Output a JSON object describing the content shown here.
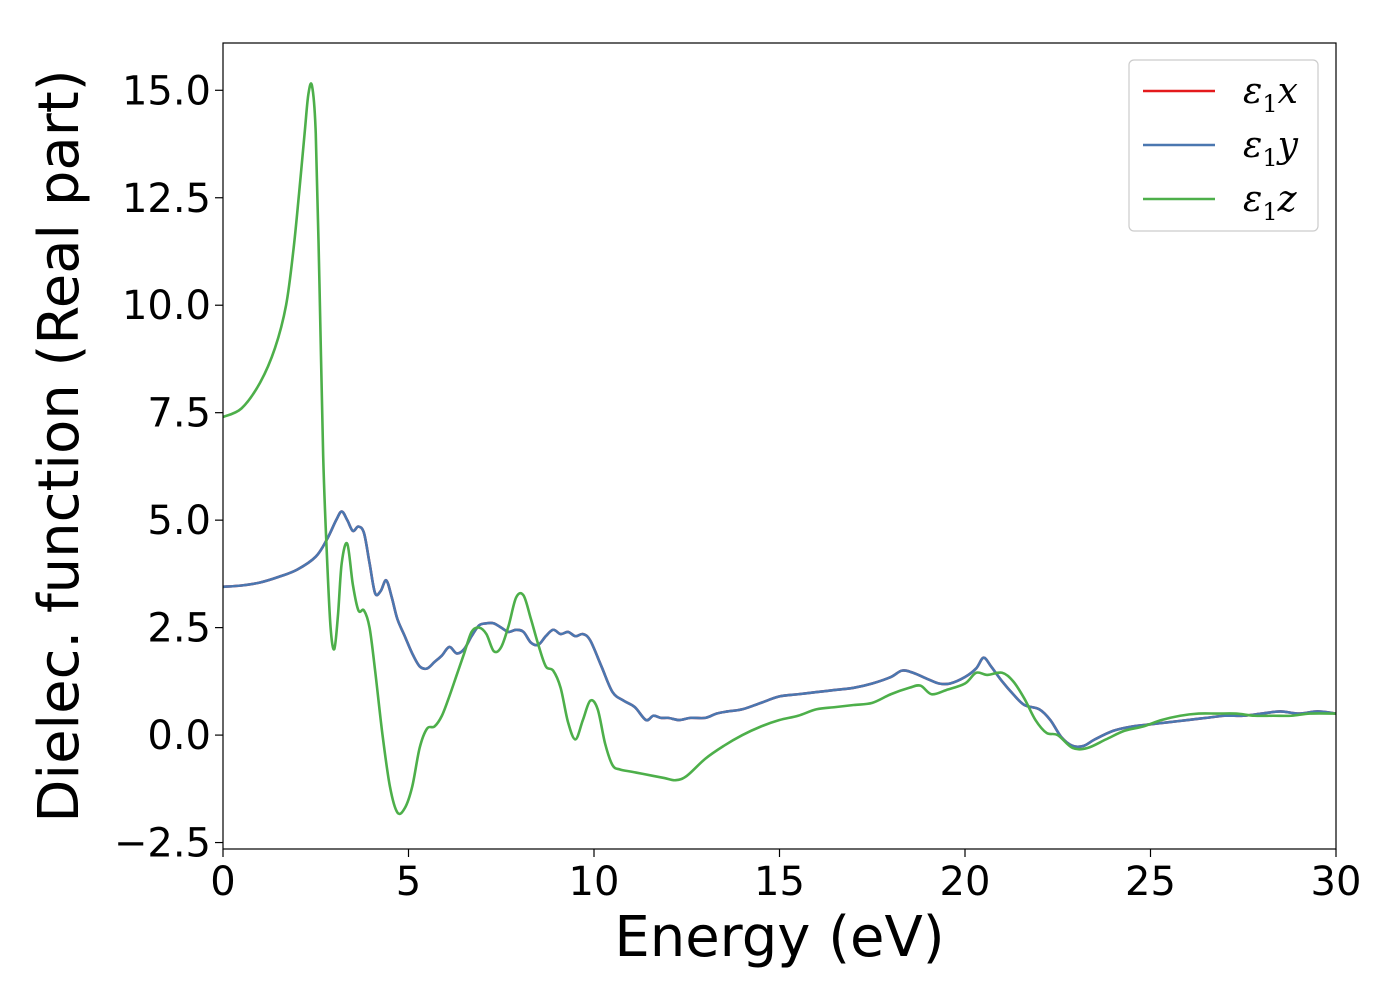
{
  "chart_data": {
    "type": "line",
    "xlabel": "Energy (eV)",
    "ylabel": "Dielec. function (Real part)",
    "xlim": [
      0,
      30
    ],
    "ylim": [
      -2.65,
      16.1
    ],
    "xticks": [
      "0",
      "5",
      "10",
      "15",
      "20",
      "25",
      "30"
    ],
    "yticks": [
      "−2.5",
      "0.0",
      "2.5",
      "5.0",
      "7.5",
      "10.0",
      "12.5",
      "15.0"
    ],
    "grid": false,
    "legend_position": "top-right",
    "series": [
      {
        "name": "ε1x",
        "symbol": "ε",
        "sub": "1",
        "axis": "x",
        "color": "#e41a1c",
        "x": [
          0,
          0.5,
          1,
          1.5,
          2,
          2.5,
          2.8,
          3.05,
          3.2,
          3.35,
          3.5,
          3.65,
          3.8,
          3.95,
          4.1,
          4.25,
          4.4,
          4.55,
          4.7,
          4.9,
          5.1,
          5.3,
          5.5,
          5.7,
          5.9,
          6.1,
          6.3,
          6.5,
          6.7,
          6.9,
          7.1,
          7.3,
          7.5,
          7.7,
          7.9,
          8.1,
          8.3,
          8.5,
          8.7,
          8.9,
          9.1,
          9.3,
          9.5,
          9.7,
          9.9,
          10.2,
          10.5,
          10.8,
          11.1,
          11.4,
          11.6,
          11.8,
          12,
          12.3,
          12.6,
          13,
          13.3,
          13.6,
          14,
          14.5,
          15,
          15.5,
          16,
          16.5,
          17,
          17.5,
          18,
          18.3,
          18.6,
          19,
          19.3,
          19.6,
          20,
          20.3,
          20.5,
          20.7,
          21,
          21.3,
          21.6,
          22,
          22.3,
          22.6,
          22.9,
          23.2,
          23.5,
          24,
          24.5,
          25,
          25.5,
          26,
          26.5,
          27,
          27.5,
          28,
          28.5,
          29,
          29.5,
          30
        ],
        "y": [
          3.45,
          3.48,
          3.55,
          3.68,
          3.85,
          4.15,
          4.55,
          5.0,
          5.2,
          5.0,
          4.75,
          4.85,
          4.7,
          4.0,
          3.3,
          3.35,
          3.6,
          3.2,
          2.7,
          2.3,
          1.9,
          1.6,
          1.55,
          1.7,
          1.85,
          2.05,
          1.9,
          2.0,
          2.3,
          2.55,
          2.6,
          2.6,
          2.5,
          2.4,
          2.45,
          2.4,
          2.15,
          2.1,
          2.3,
          2.45,
          2.35,
          2.4,
          2.3,
          2.35,
          2.2,
          1.6,
          1.0,
          0.8,
          0.65,
          0.35,
          0.45,
          0.4,
          0.4,
          0.35,
          0.4,
          0.4,
          0.5,
          0.55,
          0.6,
          0.75,
          0.9,
          0.95,
          1.0,
          1.05,
          1.1,
          1.2,
          1.35,
          1.5,
          1.45,
          1.3,
          1.2,
          1.2,
          1.35,
          1.55,
          1.8,
          1.6,
          1.25,
          0.95,
          0.7,
          0.6,
          0.35,
          -0.05,
          -0.25,
          -0.25,
          -0.1,
          0.1,
          0.2,
          0.25,
          0.3,
          0.35,
          0.4,
          0.45,
          0.45,
          0.5,
          0.55,
          0.5,
          0.55,
          0.5
        ]
      },
      {
        "name": "ε1y",
        "symbol": "ε",
        "sub": "1",
        "axis": "y",
        "color": "#4a77b0",
        "x": [
          0,
          0.5,
          1,
          1.5,
          2,
          2.5,
          2.8,
          3.05,
          3.2,
          3.35,
          3.5,
          3.65,
          3.8,
          3.95,
          4.1,
          4.25,
          4.4,
          4.55,
          4.7,
          4.9,
          5.1,
          5.3,
          5.5,
          5.7,
          5.9,
          6.1,
          6.3,
          6.5,
          6.7,
          6.9,
          7.1,
          7.3,
          7.5,
          7.7,
          7.9,
          8.1,
          8.3,
          8.5,
          8.7,
          8.9,
          9.1,
          9.3,
          9.5,
          9.7,
          9.9,
          10.2,
          10.5,
          10.8,
          11.1,
          11.4,
          11.6,
          11.8,
          12,
          12.3,
          12.6,
          13,
          13.3,
          13.6,
          14,
          14.5,
          15,
          15.5,
          16,
          16.5,
          17,
          17.5,
          18,
          18.3,
          18.6,
          19,
          19.3,
          19.6,
          20,
          20.3,
          20.5,
          20.7,
          21,
          21.3,
          21.6,
          22,
          22.3,
          22.6,
          22.9,
          23.2,
          23.5,
          24,
          24.5,
          25,
          25.5,
          26,
          26.5,
          27,
          27.5,
          28,
          28.5,
          29,
          29.5,
          30
        ],
        "y": [
          3.45,
          3.48,
          3.55,
          3.68,
          3.85,
          4.15,
          4.55,
          5.0,
          5.2,
          5.0,
          4.75,
          4.85,
          4.7,
          4.0,
          3.3,
          3.35,
          3.6,
          3.2,
          2.7,
          2.3,
          1.9,
          1.6,
          1.55,
          1.7,
          1.85,
          2.05,
          1.9,
          2.0,
          2.3,
          2.55,
          2.6,
          2.6,
          2.5,
          2.4,
          2.45,
          2.4,
          2.15,
          2.1,
          2.3,
          2.45,
          2.35,
          2.4,
          2.3,
          2.35,
          2.2,
          1.6,
          1.0,
          0.8,
          0.65,
          0.35,
          0.45,
          0.4,
          0.4,
          0.35,
          0.4,
          0.4,
          0.5,
          0.55,
          0.6,
          0.75,
          0.9,
          0.95,
          1.0,
          1.05,
          1.1,
          1.2,
          1.35,
          1.5,
          1.45,
          1.3,
          1.2,
          1.2,
          1.35,
          1.55,
          1.8,
          1.6,
          1.25,
          0.95,
          0.7,
          0.6,
          0.35,
          -0.05,
          -0.25,
          -0.25,
          -0.1,
          0.1,
          0.2,
          0.25,
          0.3,
          0.35,
          0.4,
          0.45,
          0.45,
          0.5,
          0.55,
          0.5,
          0.55,
          0.5
        ]
      },
      {
        "name": "ε1z",
        "symbol": "ε",
        "sub": "1",
        "axis": "z",
        "color": "#4daf4a",
        "x": [
          0,
          0.5,
          1,
          1.4,
          1.7,
          1.9,
          2.05,
          2.2,
          2.3,
          2.4,
          2.5,
          2.6,
          2.7,
          2.8,
          2.9,
          3.0,
          3.1,
          3.2,
          3.35,
          3.5,
          3.65,
          3.8,
          3.95,
          4.1,
          4.3,
          4.5,
          4.7,
          4.9,
          5.1,
          5.3,
          5.5,
          5.7,
          5.9,
          6.1,
          6.3,
          6.5,
          6.7,
          6.9,
          7.1,
          7.3,
          7.5,
          7.7,
          7.9,
          8.1,
          8.3,
          8.5,
          8.7,
          8.9,
          9.1,
          9.3,
          9.5,
          9.7,
          9.9,
          10.1,
          10.3,
          10.5,
          10.7,
          11,
          11.3,
          11.6,
          11.9,
          12.2,
          12.5,
          13,
          13.5,
          14,
          14.5,
          15,
          15.5,
          16,
          16.5,
          17,
          17.5,
          18,
          18.5,
          18.8,
          19.1,
          19.5,
          20,
          20.3,
          20.6,
          21,
          21.3,
          21.6,
          21.9,
          22.2,
          22.5,
          22.9,
          23.3,
          23.8,
          24.3,
          24.8,
          25.3,
          25.8,
          26.3,
          26.8,
          27.3,
          27.8,
          28.3,
          28.8,
          29.3,
          30
        ],
        "y": [
          7.4,
          7.6,
          8.2,
          9.0,
          10.0,
          11.3,
          12.6,
          14.0,
          14.9,
          15.1,
          14.0,
          10.5,
          6.5,
          4.2,
          2.5,
          2.0,
          2.8,
          4.0,
          4.45,
          3.5,
          2.9,
          2.9,
          2.5,
          1.5,
          0.0,
          -1.2,
          -1.8,
          -1.7,
          -1.2,
          -0.3,
          0.15,
          0.2,
          0.45,
          0.9,
          1.4,
          1.9,
          2.4,
          2.5,
          2.35,
          1.95,
          2.05,
          2.55,
          3.2,
          3.25,
          2.7,
          2.1,
          1.6,
          1.5,
          1.1,
          0.3,
          -0.1,
          0.35,
          0.8,
          0.6,
          -0.2,
          -0.7,
          -0.8,
          -0.85,
          -0.9,
          -0.95,
          -1.0,
          -1.05,
          -0.95,
          -0.55,
          -0.25,
          0.0,
          0.2,
          0.35,
          0.45,
          0.6,
          0.65,
          0.7,
          0.75,
          0.95,
          1.1,
          1.15,
          0.95,
          1.05,
          1.2,
          1.45,
          1.4,
          1.45,
          1.25,
          0.85,
          0.35,
          0.05,
          0.0,
          -0.3,
          -0.3,
          -0.1,
          0.1,
          0.2,
          0.35,
          0.45,
          0.5,
          0.5,
          0.5,
          0.45,
          0.45,
          0.45,
          0.5,
          0.5
        ]
      }
    ]
  }
}
